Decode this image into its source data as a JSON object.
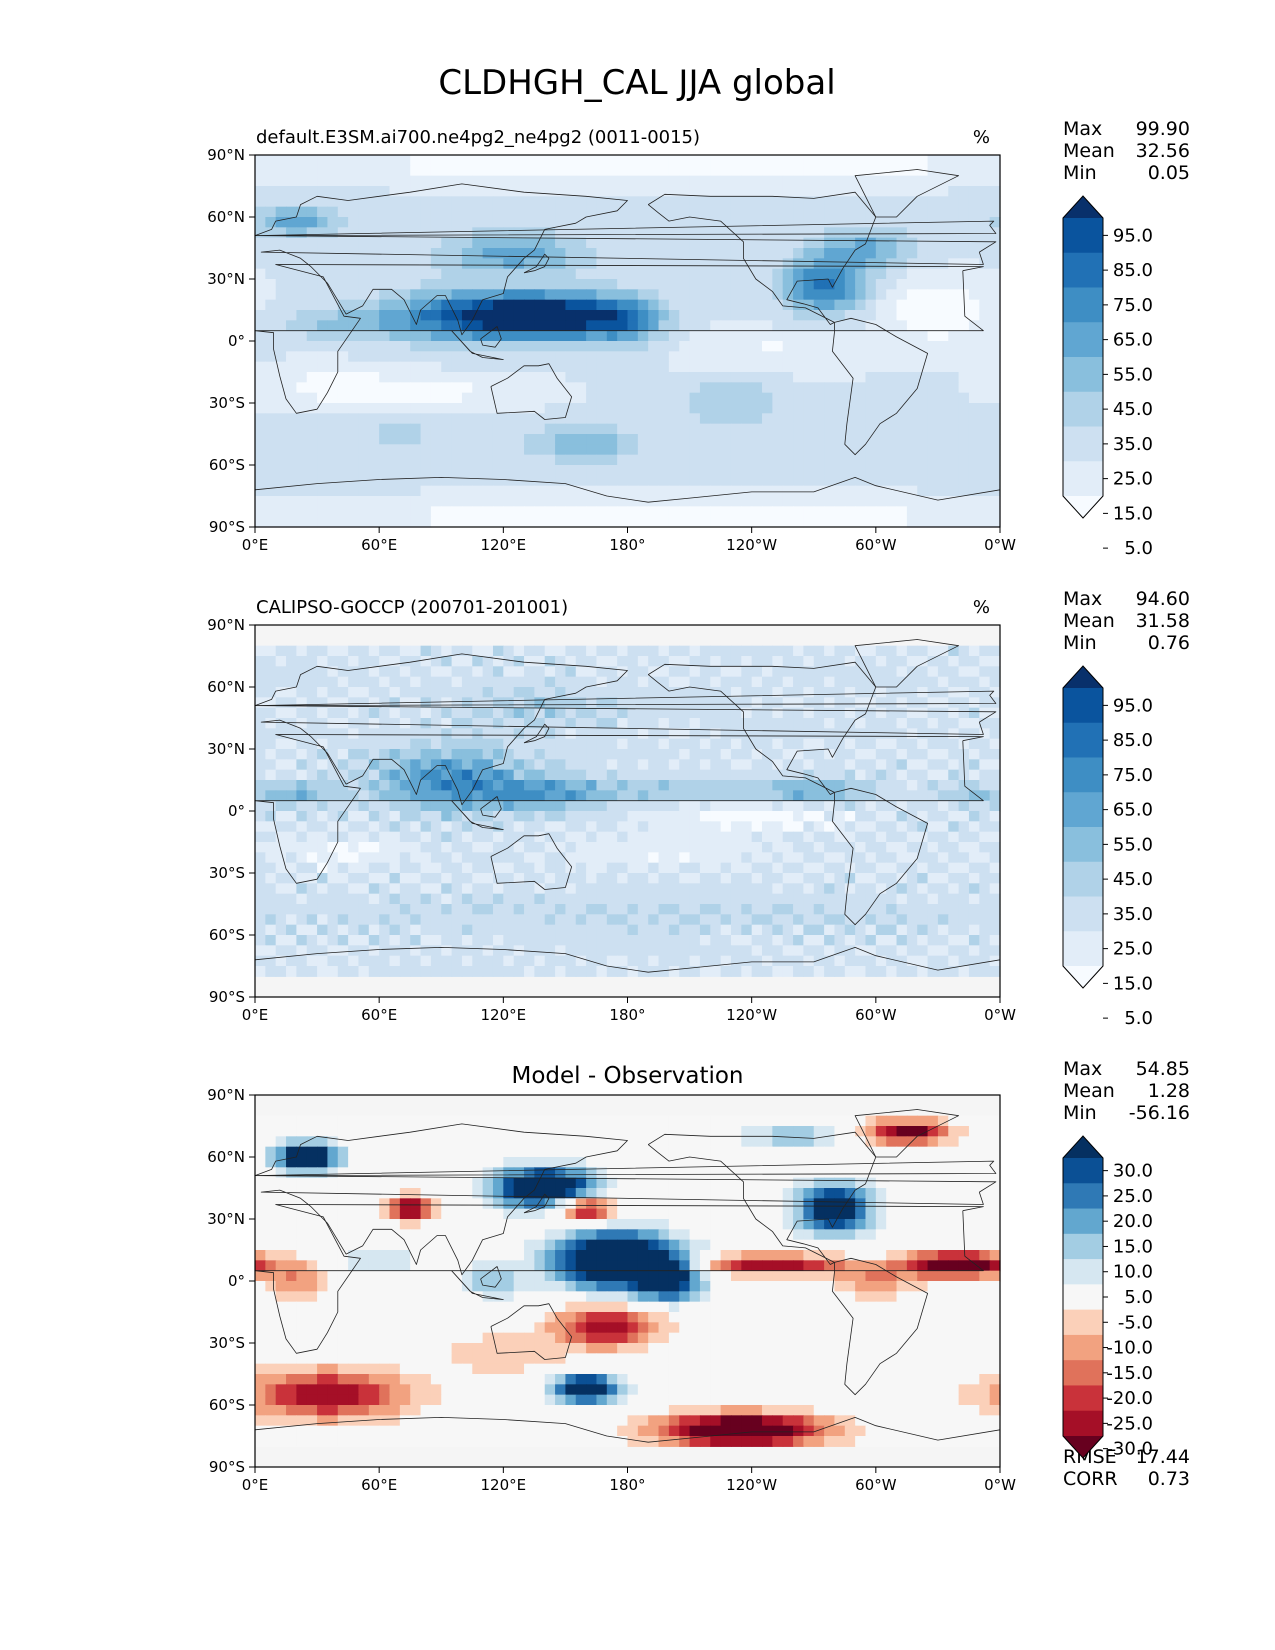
{
  "figure": {
    "title": "CLDHGH_CAL JJA global"
  },
  "chart_data": [
    {
      "type": "heatmap",
      "title": "default.E3SM.ai700.ne4pg2_ne4pg2 (0011-0015)",
      "units": "%",
      "stats": [
        {
          "label": "Max",
          "value": "99.90"
        },
        {
          "label": "Mean",
          "value": "32.56"
        },
        {
          "label": "Min",
          "value": "0.05"
        }
      ],
      "x_ticks": [
        "0°E",
        "60°E",
        "120°E",
        "180°",
        "120°W",
        "60°W",
        "0°W"
      ],
      "y_ticks": [
        "90°N",
        "60°N",
        "30°N",
        "0°",
        "30°S",
        "60°S",
        "90°S"
      ],
      "xlim": [
        0,
        360
      ],
      "ylim": [
        -90,
        90
      ],
      "colorbar": {
        "colors": [
          "#f7fbff",
          "#e2edf8",
          "#cde0f1",
          "#b0d2e8",
          "#89bfdd",
          "#60a6d2",
          "#3e8ec4",
          "#2171b5",
          "#0a549e",
          "#08306b"
        ],
        "labels": [
          "5.0",
          "15.0",
          "25.0",
          "35.0",
          "45.0",
          "55.0",
          "65.0",
          "75.0",
          "85.0",
          "95.0"
        ]
      },
      "field": {
        "base": 26,
        "blobs": [
          {
            "lon": 110,
            "lat": 12,
            "rlon": 45,
            "rlat": 12,
            "amp": 68
          },
          {
            "lon": 148,
            "lat": 12,
            "rlon": 30,
            "rlat": 10,
            "amp": 60
          },
          {
            "lon": 180,
            "lat": 10,
            "rlon": 18,
            "rlat": 12,
            "amp": 38
          },
          {
            "lon": 125,
            "lat": 42,
            "rlon": 35,
            "rlat": 10,
            "amp": 35
          },
          {
            "lon": 275,
            "lat": 27,
            "rlon": 20,
            "rlat": 13,
            "amp": 52
          },
          {
            "lon": 295,
            "lat": 45,
            "rlon": 25,
            "rlat": 10,
            "amp": 30
          },
          {
            "lon": 20,
            "lat": 58,
            "rlon": 20,
            "rlat": 8,
            "amp": 35
          },
          {
            "lon": 40,
            "lat": 8,
            "rlon": 30,
            "rlat": 8,
            "amp": 18
          },
          {
            "lon": 160,
            "lat": -50,
            "rlon": 25,
            "rlat": 8,
            "amp": 30
          },
          {
            "lon": 230,
            "lat": -30,
            "rlon": 25,
            "rlat": 12,
            "amp": 20
          },
          {
            "lon": 70,
            "lat": -45,
            "rlon": 60,
            "rlat": 10,
            "amp": 10
          },
          {
            "lon": 330,
            "lat": 15,
            "rlon": 25,
            "rlat": 15,
            "amp": -22
          },
          {
            "lon": 40,
            "lat": -22,
            "rlon": 35,
            "rlat": 10,
            "amp": -16
          },
          {
            "lon": 100,
            "lat": -25,
            "rlon": 40,
            "rlat": 8,
            "amp": -12
          },
          {
            "lon": 250,
            "lat": -5,
            "rlon": 45,
            "rlat": 10,
            "amp": -12
          },
          {
            "lon": 200,
            "lat": 85,
            "rlon": 180,
            "rlat": 8,
            "amp": -20
          },
          {
            "lon": 200,
            "lat": -85,
            "rlon": 180,
            "rlat": 8,
            "amp": -18
          }
        ]
      }
    },
    {
      "type": "heatmap",
      "title": "CALIPSO-GOCCP (200701-201001)",
      "units": "%",
      "stats": [
        {
          "label": "Max",
          "value": "94.60"
        },
        {
          "label": "Mean",
          "value": "31.58"
        },
        {
          "label": "Min",
          "value": "0.76"
        }
      ],
      "x_ticks": [
        "0°E",
        "60°E",
        "120°E",
        "180°",
        "120°W",
        "60°W",
        "0°W"
      ],
      "y_ticks": [
        "90°N",
        "60°N",
        "30°N",
        "0°",
        "30°S",
        "60°S",
        "90°S"
      ],
      "xlim": [
        0,
        360
      ],
      "ylim": [
        -90,
        90
      ],
      "lat_coverage": [
        -82,
        82
      ],
      "colorbar": {
        "colors": [
          "#f7fbff",
          "#e2edf8",
          "#cde0f1",
          "#b0d2e8",
          "#89bfdd",
          "#60a6d2",
          "#3e8ec4",
          "#2171b5",
          "#0a549e",
          "#08306b"
        ],
        "labels": [
          "5.0",
          "15.0",
          "25.0",
          "35.0",
          "45.0",
          "55.0",
          "65.0",
          "75.0",
          "85.0",
          "95.0"
        ]
      },
      "field": {
        "base": 27,
        "noise": 6,
        "blobs": [
          {
            "lon": 95,
            "lat": 15,
            "rlon": 35,
            "rlat": 15,
            "amp": 45
          },
          {
            "lon": 140,
            "lat": 8,
            "rlon": 30,
            "rlat": 8,
            "amp": 30
          },
          {
            "lon": 20,
            "lat": 8,
            "rlon": 18,
            "rlat": 6,
            "amp": 28
          },
          {
            "lon": 270,
            "lat": 10,
            "rlon": 25,
            "rlat": 6,
            "amp": 28
          },
          {
            "lon": 200,
            "lat": 10,
            "rlon": 60,
            "rlat": 5,
            "amp": 18
          },
          {
            "lon": 345,
            "lat": 8,
            "rlon": 15,
            "rlat": 5,
            "amp": 20
          },
          {
            "lon": 140,
            "lat": 50,
            "rlon": 40,
            "rlat": 10,
            "amp": 15
          },
          {
            "lon": 240,
            "lat": -3,
            "rlon": 40,
            "rlat": 6,
            "amp": -20
          },
          {
            "lon": 40,
            "lat": -20,
            "rlon": 30,
            "rlat": 8,
            "amp": -14
          },
          {
            "lon": 200,
            "lat": -20,
            "rlon": 50,
            "rlat": 8,
            "amp": -10
          },
          {
            "lon": 180,
            "lat": -50,
            "rlon": 180,
            "rlat": 10,
            "amp": 8
          }
        ]
      }
    },
    {
      "type": "heatmap",
      "title": "Model - Observation",
      "units": "",
      "stats": [
        {
          "label": "Max",
          "value": "54.85"
        },
        {
          "label": "Mean",
          "value": "1.28"
        },
        {
          "label": "Min",
          "value": "-56.16"
        }
      ],
      "extra_stats": [
        {
          "label": "RMSE",
          "value": "17.44"
        },
        {
          "label": "CORR",
          "value": "0.73"
        }
      ],
      "x_ticks": [
        "0°E",
        "60°E",
        "120°E",
        "180°",
        "120°W",
        "60°W",
        "0°W"
      ],
      "y_ticks": [
        "90°N",
        "60°N",
        "30°N",
        "0°",
        "30°S",
        "60°S",
        "90°S"
      ],
      "xlim": [
        0,
        360
      ],
      "ylim": [
        -90,
        90
      ],
      "lat_coverage": [
        -82,
        82
      ],
      "colorbar": {
        "colors": [
          "#67001f",
          "#a50f27",
          "#c9323a",
          "#e0725b",
          "#f2a280",
          "#fbd0b9",
          "#f7f7f7",
          "#d6e7f1",
          "#a3cde3",
          "#62a7cf",
          "#2f79b5",
          "#0b5095",
          "#053061"
        ],
        "labels": [
          "-30.0",
          "-25.0",
          "-20.0",
          "-15.0",
          "-10.0",
          "-5.0",
          "5.0",
          "10.0",
          "15.0",
          "20.0",
          "25.0",
          "30.0"
        ]
      },
      "field": {
        "base": 0,
        "blobs": [
          {
            "lon": 175,
            "lat": 10,
            "rlon": 30,
            "rlat": 14,
            "amp": 50
          },
          {
            "lon": 140,
            "lat": 45,
            "rlon": 25,
            "rlat": 10,
            "amp": 45
          },
          {
            "lon": 200,
            "lat": 0,
            "rlon": 15,
            "rlat": 10,
            "amp": 30
          },
          {
            "lon": 280,
            "lat": 35,
            "rlon": 18,
            "rlat": 12,
            "amp": 40
          },
          {
            "lon": 25,
            "lat": 60,
            "rlon": 15,
            "rlat": 7,
            "amp": 45
          },
          {
            "lon": 160,
            "lat": -52,
            "rlon": 15,
            "rlat": 6,
            "amp": 50
          },
          {
            "lon": 60,
            "lat": 10,
            "rlon": 20,
            "rlat": 6,
            "amp": 12
          },
          {
            "lon": 115,
            "lat": 0,
            "rlon": 15,
            "rlat": 8,
            "amp": 15
          },
          {
            "lon": 250,
            "lat": 8,
            "rlon": 35,
            "rlat": 5,
            "amp": -30
          },
          {
            "lon": 340,
            "lat": 8,
            "rlon": 25,
            "rlat": 6,
            "amp": -42
          },
          {
            "lon": 300,
            "lat": 0,
            "rlon": 20,
            "rlat": 8,
            "amp": -15
          },
          {
            "lon": 235,
            "lat": -72,
            "rlon": 40,
            "rlat": 8,
            "amp": -45
          },
          {
            "lon": 35,
            "lat": -55,
            "rlon": 40,
            "rlat": 12,
            "amp": -30
          },
          {
            "lon": 170,
            "lat": -22,
            "rlon": 25,
            "rlat": 10,
            "amp": -30
          },
          {
            "lon": 160,
            "lat": 35,
            "rlon": 15,
            "rlat": 6,
            "amp": -35
          },
          {
            "lon": 75,
            "lat": 35,
            "rlon": 10,
            "rlat": 6,
            "amp": -32
          },
          {
            "lon": 315,
            "lat": 72,
            "rlon": 20,
            "rlat": 6,
            "amp": -35
          },
          {
            "lon": 20,
            "lat": 0,
            "rlon": 15,
            "rlat": 10,
            "amp": -15
          },
          {
            "lon": 120,
            "lat": -35,
            "rlon": 30,
            "rlat": 10,
            "amp": -10
          },
          {
            "lon": 260,
            "lat": 70,
            "rlon": 25,
            "rlat": 6,
            "amp": 15
          }
        ]
      }
    }
  ]
}
